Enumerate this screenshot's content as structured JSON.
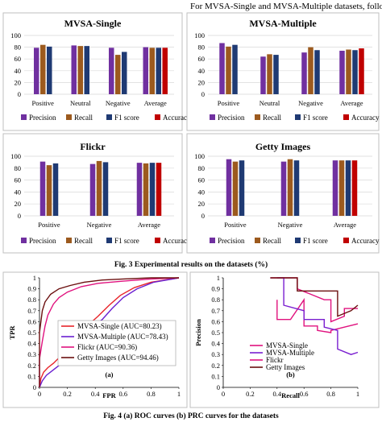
{
  "header_text": "For MVSA-Single and MVSA-Multiple datasets, followi",
  "fig3_caption": "Fig. 3 Experimental results on the datasets (%)",
  "fig4_caption": "Fig. 4 (a) ROC curves (b) PRC curves for the datasets",
  "colors": {
    "precision": "#7030a0",
    "recall": "#9c5a1e",
    "f1": "#1f3a73",
    "accuracy": "#c00000"
  },
  "chart_data": [
    {
      "type": "bar",
      "title": "MVSA-Single",
      "categories": [
        "Positive",
        "Neutral",
        "Negative",
        "Average"
      ],
      "ylim": [
        0,
        100
      ],
      "yticks": [
        "0",
        "20",
        "40",
        "60",
        "80",
        "100"
      ],
      "series": [
        {
          "name": "Precision",
          "values": [
            79,
            83,
            79,
            80
          ]
        },
        {
          "name": "Recall",
          "values": [
            84,
            82,
            67,
            79
          ]
        },
        {
          "name": "F1 score",
          "values": [
            81,
            82,
            72,
            79
          ]
        },
        {
          "name": "Accuracy",
          "values": [
            null,
            null,
            null,
            79
          ]
        }
      ]
    },
    {
      "type": "bar",
      "title": "MVSA-Multiple",
      "categories": [
        "Positive",
        "Neutral",
        "Negative",
        "Average"
      ],
      "ylim": [
        0,
        100
      ],
      "yticks": [
        "0",
        "20",
        "40",
        "60",
        "80",
        "100"
      ],
      "series": [
        {
          "name": "Precision",
          "values": [
            87,
            64,
            71,
            74
          ]
        },
        {
          "name": "Recall",
          "values": [
            81,
            68,
            80,
            76
          ]
        },
        {
          "name": "F1 score",
          "values": [
            84,
            67,
            75,
            75
          ]
        },
        {
          "name": "Accuracy",
          "values": [
            null,
            null,
            null,
            78
          ]
        }
      ]
    },
    {
      "type": "bar",
      "title": "Flickr",
      "categories": [
        "Positive",
        "Negative",
        "Average"
      ],
      "ylim": [
        0,
        100
      ],
      "yticks": [
        "0",
        "20",
        "40",
        "60",
        "80",
        "100"
      ],
      "series": [
        {
          "name": "Precision",
          "values": [
            91,
            87,
            89
          ]
        },
        {
          "name": "Recall",
          "values": [
            85,
            92,
            88
          ]
        },
        {
          "name": "F1 score",
          "values": [
            88,
            90,
            89
          ]
        },
        {
          "name": "Accuracy",
          "values": [
            null,
            null,
            89
          ]
        }
      ]
    },
    {
      "type": "bar",
      "title": "Getty Images",
      "categories": [
        "Positive",
        "Negative",
        "Average"
      ],
      "ylim": [
        0,
        100
      ],
      "yticks": [
        "0",
        "20",
        "40",
        "60",
        "80",
        "100"
      ],
      "series": [
        {
          "name": "Precision",
          "values": [
            95,
            91,
            93
          ]
        },
        {
          "name": "Recall",
          "values": [
            91,
            95,
            93
          ]
        },
        {
          "name": "F1 score",
          "values": [
            93,
            93,
            93
          ]
        },
        {
          "name": "Accuracy",
          "values": [
            null,
            null,
            93
          ]
        }
      ]
    },
    {
      "type": "line",
      "panel_label": "(a)",
      "xlabel": "FPR",
      "ylabel": "TPR",
      "xlim": [
        0,
        1
      ],
      "ylim": [
        0,
        1
      ],
      "xticks": [
        "0",
        "0.2",
        "0.4",
        "0.6",
        "0.8",
        "1"
      ],
      "yticks": [
        "0",
        "0.1",
        "0.2",
        "0.3",
        "0.4",
        "0.5",
        "0.6",
        "0.7",
        "0.8",
        "0.9",
        "1"
      ],
      "series": [
        {
          "name": "MVSA-Single (AUC=80.23)",
          "color": "#e8242a",
          "points": [
            [
              0,
              0
            ],
            [
              0.01,
              0.08
            ],
            [
              0.03,
              0.14
            ],
            [
              0.06,
              0.18
            ],
            [
              0.1,
              0.22
            ],
            [
              0.14,
              0.27
            ],
            [
              0.2,
              0.34
            ],
            [
              0.26,
              0.42
            ],
            [
              0.3,
              0.5
            ],
            [
              0.35,
              0.57
            ],
            [
              0.42,
              0.65
            ],
            [
              0.5,
              0.75
            ],
            [
              0.58,
              0.84
            ],
            [
              0.68,
              0.91
            ],
            [
              0.8,
              0.96
            ],
            [
              1,
              1
            ]
          ]
        },
        {
          "name": "MVSA-Multiple (AUC=78.43)",
          "color": "#6a1fd0",
          "points": [
            [
              0,
              0
            ],
            [
              0.02,
              0.06
            ],
            [
              0.05,
              0.11
            ],
            [
              0.1,
              0.16
            ],
            [
              0.16,
              0.22
            ],
            [
              0.22,
              0.3
            ],
            [
              0.27,
              0.38
            ],
            [
              0.32,
              0.47
            ],
            [
              0.38,
              0.55
            ],
            [
              0.45,
              0.62
            ],
            [
              0.52,
              0.72
            ],
            [
              0.6,
              0.82
            ],
            [
              0.7,
              0.9
            ],
            [
              0.82,
              0.96
            ],
            [
              1,
              1
            ]
          ]
        },
        {
          "name": "Flickr (AUC=90.36)",
          "color": "#e0127e",
          "points": [
            [
              0,
              0
            ],
            [
              0.0,
              0.26
            ],
            [
              0.02,
              0.42
            ],
            [
              0.04,
              0.56
            ],
            [
              0.06,
              0.66
            ],
            [
              0.1,
              0.76
            ],
            [
              0.14,
              0.82
            ],
            [
              0.2,
              0.87
            ],
            [
              0.3,
              0.92
            ],
            [
              0.42,
              0.95
            ],
            [
              0.6,
              0.97
            ],
            [
              0.8,
              0.99
            ],
            [
              1,
              1
            ]
          ]
        },
        {
          "name": "Getty Images (AUC=94.46)",
          "color": "#6b0f0f",
          "points": [
            [
              0,
              0
            ],
            [
              0.0,
              0.5
            ],
            [
              0.02,
              0.7
            ],
            [
              0.04,
              0.78
            ],
            [
              0.08,
              0.85
            ],
            [
              0.14,
              0.9
            ],
            [
              0.22,
              0.93
            ],
            [
              0.32,
              0.96
            ],
            [
              0.45,
              0.98
            ],
            [
              0.6,
              0.99
            ],
            [
              0.8,
              1.0
            ],
            [
              1,
              1
            ]
          ]
        }
      ]
    },
    {
      "type": "line",
      "panel_label": "(b)",
      "xlabel": "Recall",
      "ylabel": "Precision",
      "xlim": [
        0,
        1
      ],
      "ylim": [
        0,
        1
      ],
      "xticks": [
        "0",
        "0.2",
        "0.4",
        "0.6",
        "0.8",
        "1"
      ],
      "yticks": [
        "0",
        "0.1",
        "0.2",
        "0.3",
        "0.4",
        "0.5",
        "0.6",
        "0.7",
        "0.8",
        "0.9",
        "1"
      ],
      "series": [
        {
          "name": "MVSA-Single",
          "color": "#e0127e",
          "points": [
            [
              0.4,
              0.8
            ],
            [
              0.4,
              0.62
            ],
            [
              0.5,
              0.62
            ],
            [
              0.6,
              0.8
            ],
            [
              0.6,
              0.56
            ],
            [
              0.7,
              0.56
            ],
            [
              0.7,
              0.52
            ],
            [
              0.8,
              0.5
            ],
            [
              0.8,
              0.52
            ],
            [
              0.9,
              0.55
            ],
            [
              1.0,
              0.58
            ]
          ]
        },
        {
          "name": "MVSA-Multiple",
          "color": "#7a1fd0",
          "points": [
            [
              0.4,
              1.0
            ],
            [
              0.45,
              1.0
            ],
            [
              0.45,
              0.75
            ],
            [
              0.6,
              0.7
            ],
            [
              0.6,
              0.62
            ],
            [
              0.75,
              0.62
            ],
            [
              0.75,
              0.55
            ],
            [
              0.85,
              0.52
            ],
            [
              0.85,
              0.35
            ],
            [
              0.95,
              0.3
            ],
            [
              1.0,
              0.32
            ]
          ]
        },
        {
          "name": "Flickr",
          "color": "#e0127e",
          "points": [
            [
              0.35,
              1.0
            ],
            [
              0.55,
              1.0
            ],
            [
              0.55,
              0.9
            ],
            [
              0.65,
              0.85
            ],
            [
              0.75,
              0.8
            ],
            [
              0.8,
              0.8
            ],
            [
              0.8,
              0.6
            ],
            [
              0.9,
              0.65
            ],
            [
              0.9,
              0.72
            ],
            [
              1.0,
              0.72
            ]
          ]
        },
        {
          "name": "Getty Images",
          "color": "#6b0f0f",
          "points": [
            [
              0.35,
              1.0
            ],
            [
              0.55,
              1.0
            ],
            [
              0.55,
              0.88
            ],
            [
              0.85,
              0.88
            ],
            [
              0.85,
              0.65
            ],
            [
              0.95,
              0.7
            ],
            [
              1.0,
              0.75
            ]
          ]
        }
      ]
    }
  ]
}
